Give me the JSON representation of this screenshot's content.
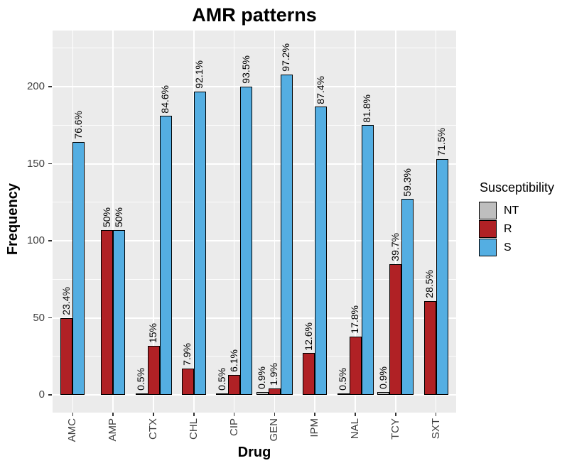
{
  "chart_data": {
    "type": "bar",
    "title": "AMR patterns",
    "xlabel": "Drug",
    "ylabel": "Frequency",
    "legend_title": "Susceptibility",
    "legend_position": "right",
    "grid": true,
    "categories": [
      "AMC",
      "AMP",
      "CTX",
      "CHL",
      "CIP",
      "GEN",
      "IPM",
      "NAL",
      "TCY",
      "SXT"
    ],
    "series": [
      {
        "name": "NT",
        "color": "#BEBEBE",
        "values": [
          null,
          null,
          1,
          null,
          1,
          2,
          null,
          1,
          2,
          null
        ],
        "labels": [
          null,
          null,
          "0.5%",
          null,
          "0.5%",
          "0.9%",
          null,
          "0.5%",
          "0.9%",
          null
        ]
      },
      {
        "name": "R",
        "color": "#B02125",
        "values": [
          50,
          107,
          32,
          17,
          13,
          4,
          27,
          38,
          85,
          61
        ],
        "labels": [
          "23.4%",
          "50%",
          "15%",
          "7.9%",
          "6.1%",
          "1.9%",
          "12.6%",
          "17.8%",
          "39.7%",
          "28.5%"
        ]
      },
      {
        "name": "S",
        "color": "#54AEE2",
        "values": [
          164,
          107,
          181,
          197,
          200,
          208,
          187,
          175,
          127,
          153
        ],
        "labels": [
          "76.6%",
          "50%",
          "84.6%",
          "92.1%",
          "93.5%",
          "97.2%",
          "87.4%",
          "81.8%",
          "59.3%",
          "71.5%"
        ]
      }
    ],
    "yticks": [
      0,
      50,
      100,
      150,
      200
    ],
    "yticks_minor": [
      25,
      75,
      125,
      175,
      225
    ],
    "ylim": [
      -12,
      236
    ],
    "colors": {
      "panel_background": "#EBEBEB",
      "gridline": "#FFFFFF",
      "bar_outline": "#000000",
      "axis_text": "#404040",
      "tick_mark": "#333333"
    }
  }
}
